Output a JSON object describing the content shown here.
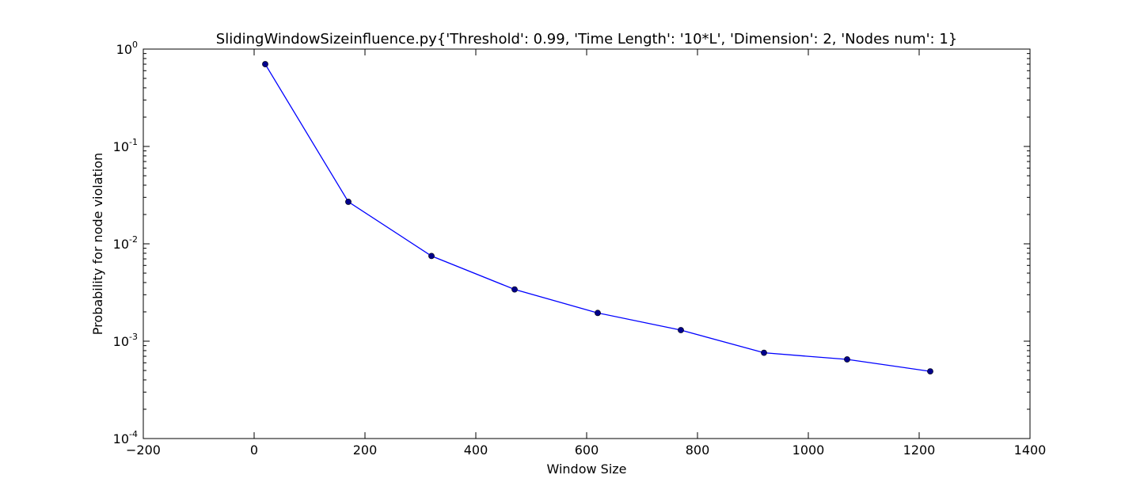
{
  "chart_data": {
    "type": "line",
    "title": "SlidingWindowSizeinfluence.py{'Threshold': 0.99, 'Time Length': '10*L', 'Dimension': 2, 'Nodes num': 1}",
    "xlabel": "Window Size",
    "ylabel": "Probability for node violation",
    "xscale": "linear",
    "yscale": "log",
    "xlim": [
      -200,
      1400
    ],
    "ylim": [
      0.0001,
      1
    ],
    "x_ticks": [
      -200,
      0,
      200,
      400,
      600,
      800,
      1000,
      1200,
      1400
    ],
    "x_tick_labels": [
      "−200",
      "0",
      "200",
      "400",
      "600",
      "800",
      "1000",
      "1200",
      "1400"
    ],
    "y_ticks": [
      {
        "value": 1,
        "base": "10",
        "exp": "0"
      },
      {
        "value": 0.1,
        "base": "10",
        "exp": "-1"
      },
      {
        "value": 0.01,
        "base": "10",
        "exp": "-2"
      },
      {
        "value": 0.001,
        "base": "10",
        "exp": "-3"
      },
      {
        "value": 0.0001,
        "base": "10",
        "exp": "-4"
      }
    ],
    "grid": false,
    "legend": "none",
    "series": [
      {
        "color": "#0000ff",
        "marker_color": "#00008b",
        "x": [
          20,
          170,
          320,
          470,
          620,
          770,
          920,
          1070,
          1220
        ],
        "values": [
          0.7,
          0.027,
          0.0075,
          0.0034,
          0.00195,
          0.0013,
          0.00076,
          0.00065,
          0.00049
        ]
      }
    ]
  }
}
